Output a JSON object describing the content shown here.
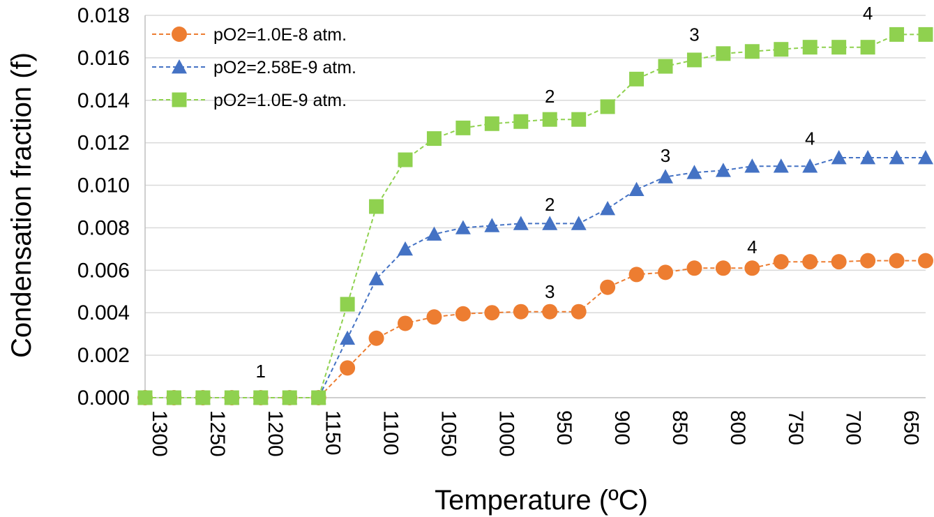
{
  "chart_data": {
    "type": "line",
    "xlabel": "Temperature (ºC)",
    "ylabel": "Condensation fraction (f)",
    "x_tick_labels": [
      "1300",
      "1250",
      "1200",
      "1150",
      "1100",
      "1050",
      "1000",
      "950",
      "900",
      "850",
      "800",
      "750",
      "700",
      "650"
    ],
    "y_tick_labels": [
      "0.000",
      "0.002",
      "0.004",
      "0.006",
      "0.008",
      "0.010",
      "0.012",
      "0.014",
      "0.016",
      "0.018"
    ],
    "ylim": [
      0,
      0.018
    ],
    "xlim": [
      1300,
      625
    ],
    "x_reversed": true,
    "grid": "horizontal",
    "legend_position": "top-left",
    "x": [
      1300,
      1275,
      1250,
      1225,
      1200,
      1175,
      1150,
      1125,
      1100,
      1075,
      1050,
      1025,
      1000,
      975,
      950,
      925,
      900,
      875,
      850,
      825,
      800,
      775,
      750,
      725,
      700,
      675,
      650,
      625
    ],
    "series": [
      {
        "name": "pO2=1.0E-8 atm.",
        "marker": "circle",
        "color": "#ed7d31",
        "values": [
          0,
          0,
          0,
          0,
          0,
          0,
          0,
          0.0014,
          0.0028,
          0.0035,
          0.0038,
          0.00395,
          0.004,
          0.00405,
          0.00405,
          0.00405,
          0.0052,
          0.0058,
          0.0059,
          0.0061,
          0.0061,
          0.0061,
          0.0064,
          0.0064,
          0.0064,
          0.00645,
          0.00645,
          0.00645
        ]
      },
      {
        "name": "pO2=2.58E-9 atm.",
        "marker": "triangle",
        "color": "#4472c4",
        "values": [
          0,
          0,
          0,
          0,
          0,
          0,
          0,
          0.0028,
          0.0056,
          0.007,
          0.0077,
          0.008,
          0.0081,
          0.0082,
          0.0082,
          0.0082,
          0.0089,
          0.0098,
          0.0104,
          0.0106,
          0.0107,
          0.0109,
          0.0109,
          0.0109,
          0.0113,
          0.0113,
          0.0113,
          0.0113
        ]
      },
      {
        "name": "pO2=1.0E-9 atm.",
        "marker": "square",
        "color": "#8fd14f",
        "values": [
          0,
          0,
          0,
          0,
          0,
          0,
          0,
          0.0044,
          0.009,
          0.0112,
          0.0122,
          0.0127,
          0.0129,
          0.013,
          0.0131,
          0.0131,
          0.0137,
          0.015,
          0.0156,
          0.0159,
          0.0162,
          0.0163,
          0.0164,
          0.0165,
          0.0165,
          0.0165,
          0.0171,
          0.0171
        ]
      }
    ],
    "annotations": [
      {
        "text": "1",
        "x": 1200,
        "y": 0.00095
      },
      {
        "text": "3",
        "x": 950,
        "y": 0.0047
      },
      {
        "text": "4",
        "x": 775,
        "y": 0.0068
      },
      {
        "text": "2",
        "x": 950,
        "y": 0.0088
      },
      {
        "text": "3",
        "x": 850,
        "y": 0.0111
      },
      {
        "text": "4",
        "x": 725,
        "y": 0.0119
      },
      {
        "text": "2",
        "x": 950,
        "y": 0.0139
      },
      {
        "text": "3",
        "x": 825,
        "y": 0.0168
      },
      {
        "text": "4",
        "x": 675,
        "y": 0.0178
      }
    ]
  }
}
